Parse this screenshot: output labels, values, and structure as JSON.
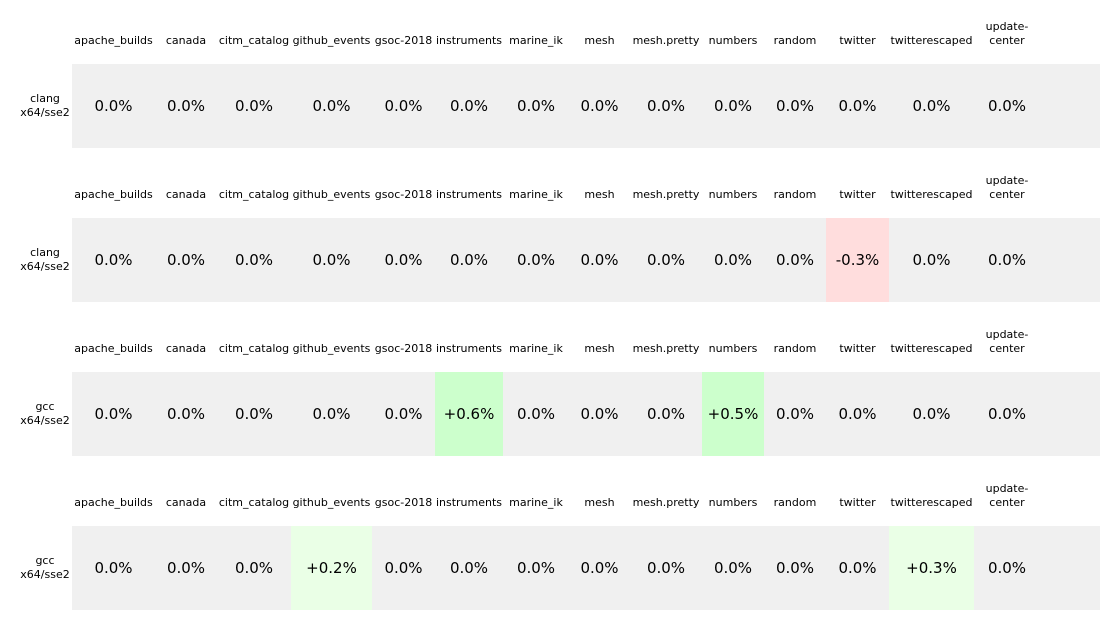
{
  "chart_data": {
    "type": "table",
    "columns": [
      "apache_builds",
      "canada",
      "citm_catalog",
      "github_events",
      "gsoc-2018",
      "instruments",
      "marine_ik",
      "mesh",
      "mesh.pretty",
      "numbers",
      "random",
      "twitter",
      "twitterescaped",
      "update-center"
    ],
    "tables": [
      {
        "row_label": [
          "clang",
          "x64/sse2"
        ],
        "values": [
          0.0,
          0.0,
          0.0,
          0.0,
          0.0,
          0.0,
          0.0,
          0.0,
          0.0,
          0.0,
          0.0,
          0.0,
          0.0,
          0.0
        ],
        "display": [
          "0.0%",
          "0.0%",
          "0.0%",
          "0.0%",
          "0.0%",
          "0.0%",
          "0.0%",
          "0.0%",
          "0.0%",
          "0.0%",
          "0.0%",
          "0.0%",
          "0.0%",
          "0.0%"
        ]
      },
      {
        "row_label": [
          "clang",
          "x64/sse2"
        ],
        "values": [
          0.0,
          0.0,
          0.0,
          0.0,
          0.0,
          0.0,
          0.0,
          0.0,
          0.0,
          0.0,
          0.0,
          -0.3,
          0.0,
          0.0
        ],
        "display": [
          "0.0%",
          "0.0%",
          "0.0%",
          "0.0%",
          "0.0%",
          "0.0%",
          "0.0%",
          "0.0%",
          "0.0%",
          "0.0%",
          "0.0%",
          "-0.3%",
          "0.0%",
          "0.0%"
        ]
      },
      {
        "row_label": [
          "gcc",
          "x64/sse2"
        ],
        "values": [
          0.0,
          0.0,
          0.0,
          0.0,
          0.0,
          0.6,
          0.0,
          0.0,
          0.0,
          0.5,
          0.0,
          0.0,
          0.0,
          0.0
        ],
        "display": [
          "0.0%",
          "0.0%",
          "0.0%",
          "0.0%",
          "0.0%",
          "+0.6%",
          "0.0%",
          "0.0%",
          "0.0%",
          "+0.5%",
          "0.0%",
          "0.0%",
          "0.0%",
          "0.0%"
        ]
      },
      {
        "row_label": [
          "gcc",
          "x64/sse2"
        ],
        "values": [
          0.0,
          0.0,
          0.0,
          0.2,
          0.0,
          0.0,
          0.0,
          0.0,
          0.0,
          0.0,
          0.0,
          0.0,
          0.3,
          0.0
        ],
        "display": [
          "0.0%",
          "0.0%",
          "0.0%",
          "+0.2%",
          "0.0%",
          "0.0%",
          "0.0%",
          "0.0%",
          "0.0%",
          "0.0%",
          "0.0%",
          "0.0%",
          "+0.3%",
          "0.0%"
        ]
      }
    ],
    "colors": {
      "neutral": "#f0f0f0",
      "negative_small": "#ffdddd",
      "positive_small": "#eaffe6",
      "positive_medium": "#ccffcc"
    }
  }
}
